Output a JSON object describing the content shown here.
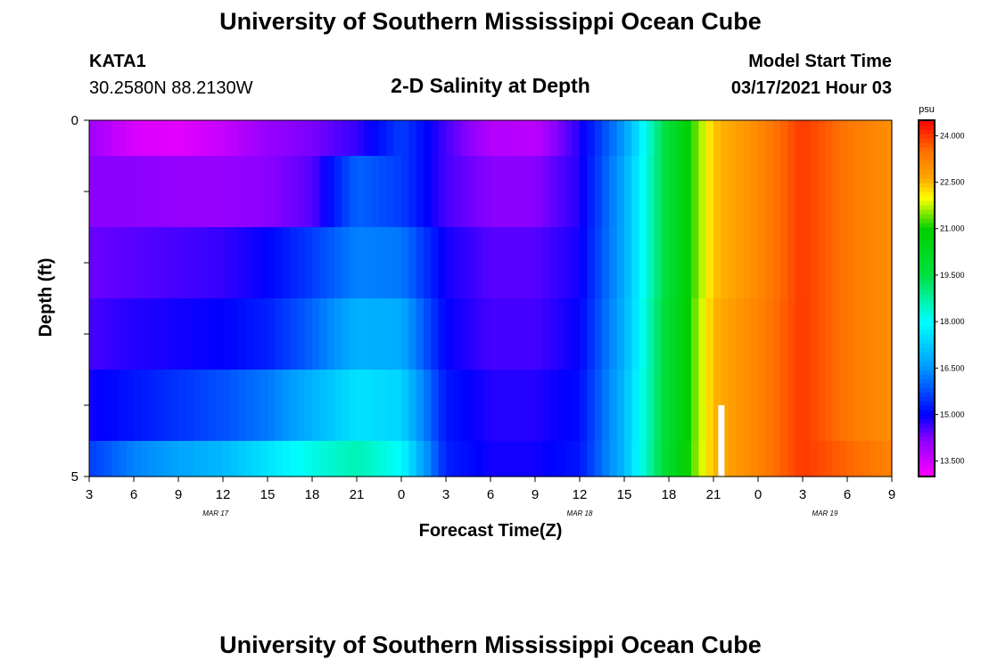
{
  "header": {
    "title": "University of Southern Mississippi Ocean Cube",
    "station": "KATA1",
    "coordinates": "30.2580N 88.2130W",
    "subtitle": "2-D Salinity at Depth",
    "model_start_label": "Model Start Time",
    "model_start_value": "03/17/2021 Hour 03"
  },
  "footer": {
    "title": "University of Southern Mississippi Ocean Cube"
  },
  "colorbar": {
    "unit": "psu",
    "min": 13.0,
    "max": 24.5,
    "ticks": [
      "13.500",
      "15.000",
      "16.500",
      "18.000",
      "19.500",
      "21.000",
      "22.500",
      "24.000"
    ],
    "tick_values": [
      13.5,
      15.0,
      16.5,
      18.0,
      19.5,
      21.0,
      22.5,
      24.0
    ],
    "stops": [
      {
        "v": 13.0,
        "color": "#ff00ff"
      },
      {
        "v": 14.2,
        "color": "#8c00ff"
      },
      {
        "v": 15.0,
        "color": "#0000ff"
      },
      {
        "v": 16.5,
        "color": "#0096ff"
      },
      {
        "v": 18.0,
        "color": "#00ffff"
      },
      {
        "v": 19.5,
        "color": "#00e040"
      },
      {
        "v": 21.0,
        "color": "#00d000"
      },
      {
        "v": 22.0,
        "color": "#ffff00"
      },
      {
        "v": 22.6,
        "color": "#ffaa00"
      },
      {
        "v": 23.5,
        "color": "#ff7000"
      },
      {
        "v": 24.5,
        "color": "#ff0000"
      }
    ]
  },
  "chart_data": {
    "type": "heatmap",
    "title": "2-D Salinity at Depth",
    "xlabel": "Forecast Time(Z)",
    "ylabel": "Depth (ft)",
    "units": "psu",
    "x_hours": [
      0,
      3,
      6,
      9,
      12,
      15,
      18,
      21,
      24,
      27,
      30,
      33,
      36,
      39,
      42,
      45,
      48,
      51,
      54
    ],
    "x_tick_labels": [
      "3",
      "6",
      "9",
      "12",
      "15",
      "18",
      "21",
      "0",
      "3",
      "6",
      "9",
      "12",
      "15",
      "18",
      "21",
      "0",
      "3",
      "6",
      "9"
    ],
    "date_labels": [
      {
        "label": "MAR 17",
        "hour": 8.5
      },
      {
        "label": "MAR 18",
        "hour": 33
      },
      {
        "label": "MAR 19",
        "hour": 49.5
      }
    ],
    "y_range": [
      0,
      5
    ],
    "y_tick_labels": [
      "0",
      "5"
    ],
    "depth_bands": [
      0,
      0.5,
      1.5,
      2.5,
      3.5,
      4.5,
      5.0
    ],
    "series": [
      {
        "name": "0.0-0.5 ft",
        "values": [
          14.0,
          13.4,
          13.3,
          13.6,
          14.1,
          14.3,
          14.7,
          15.6,
          14.6,
          13.8,
          13.7,
          14.8,
          16.6,
          19.8,
          22.4,
          23.1,
          24.0,
          23.4,
          23.0
        ]
      },
      {
        "name": "0.5-1.5 ft",
        "values": [
          14.2,
          14.2,
          14.1,
          14.1,
          14.2,
          14.5,
          16.0,
          15.6,
          14.6,
          14.2,
          14.2,
          14.8,
          16.8,
          19.8,
          22.4,
          23.1,
          24.0,
          23.4,
          23.0
        ]
      },
      {
        "name": "1.5-2.5 ft",
        "values": [
          14.4,
          14.5,
          14.6,
          14.7,
          15.0,
          15.6,
          16.3,
          16.2,
          14.9,
          14.5,
          14.5,
          14.9,
          16.8,
          19.8,
          22.4,
          23.1,
          24.0,
          23.4,
          23.0
        ]
      },
      {
        "name": "2.5-3.5 ft",
        "values": [
          14.6,
          14.8,
          14.9,
          15.0,
          15.3,
          16.0,
          16.9,
          16.8,
          15.0,
          14.6,
          14.6,
          15.0,
          16.9,
          19.9,
          22.5,
          23.2,
          24.0,
          23.4,
          23.0
        ]
      },
      {
        "name": "3.5-4.5 ft",
        "values": [
          14.9,
          15.2,
          15.5,
          15.8,
          16.2,
          16.9,
          17.6,
          17.4,
          15.2,
          14.8,
          14.8,
          15.1,
          17.0,
          19.9,
          22.5,
          23.2,
          24.0,
          23.4,
          23.0
        ]
      },
      {
        "name": "4.5-5.0 ft",
        "values": [
          15.6,
          16.3,
          16.7,
          17.0,
          17.6,
          18.2,
          18.6,
          18.0,
          15.3,
          14.9,
          14.9,
          15.2,
          17.0,
          20.0,
          22.5,
          23.2,
          24.0,
          23.6,
          23.2
        ]
      }
    ],
    "gap_marker": {
      "hour": 42.5,
      "depth_from": 4.0,
      "depth_to": 5.0
    }
  }
}
